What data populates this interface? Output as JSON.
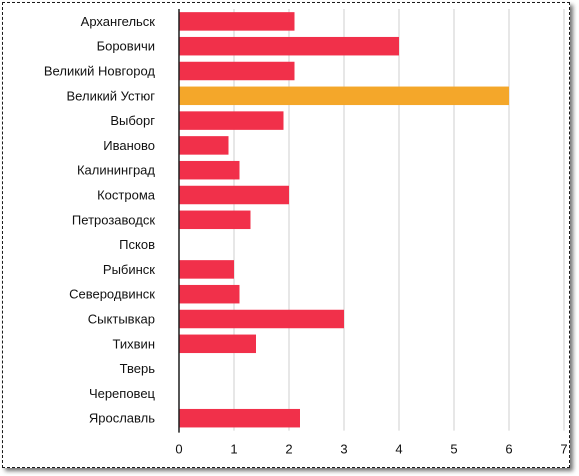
{
  "chart_data": {
    "type": "bar",
    "orientation": "horizontal",
    "title": "",
    "xlabel": "",
    "ylabel": "",
    "categories": [
      "Архангельск",
      "Боровичи",
      "Великий Новгород",
      "Великий Устюг",
      "Выборг",
      "Иваново",
      "Калининград",
      "Кострома",
      "Петрозаводск",
      "Псков",
      "Рыбинск",
      "Северодвинск",
      "Сыктывкар",
      "Тихвин",
      "Тверь",
      "Череповец",
      "Ярославль"
    ],
    "values": [
      2.1,
      4.0,
      2.1,
      6.0,
      1.9,
      0.9,
      1.1,
      2.0,
      1.3,
      0,
      1.0,
      1.1,
      3.0,
      1.4,
      0,
      0,
      2.2
    ],
    "highlight_index": 3,
    "xlim": [
      0,
      7
    ],
    "xticks": [
      "0",
      "1",
      "2",
      "3",
      "4",
      "5",
      "6",
      "7"
    ],
    "colors": {
      "bar": "#f1304a",
      "highlight": "#f4a72a",
      "gridline": "#cfcfcf",
      "axis": "#1f1f1f"
    },
    "grid": true,
    "legend": "none"
  }
}
